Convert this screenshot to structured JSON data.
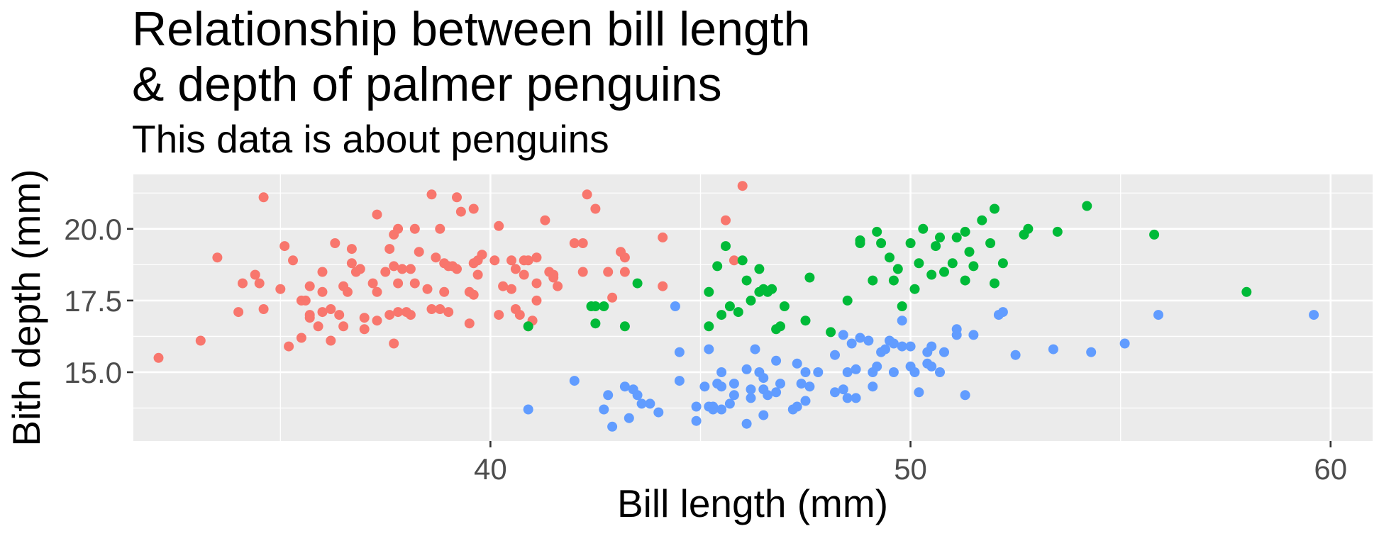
{
  "chart_data": {
    "type": "scatter",
    "title": "Relationship between bill length\n& depth of palmer penguins",
    "subtitle": "This data is about penguins",
    "xlabel": "Bill length (mm)",
    "ylabel": "Bith depth (mm)",
    "xlim": [
      31.5,
      61
    ],
    "ylim": [
      12.6,
      21.9
    ],
    "xticks": [
      40,
      50,
      60
    ],
    "xtick_labels": [
      "40",
      "50",
      "60"
    ],
    "yticks": [
      15,
      17.5,
      20
    ],
    "ytick_labels": [
      "15.0",
      "17.5",
      "20.0"
    ],
    "grid": true,
    "legend": "none",
    "series": [
      {
        "color": "#F8766D",
        "points": [
          [
            32.1,
            15.5
          ],
          [
            33.1,
            16.1
          ],
          [
            33.5,
            19.0
          ],
          [
            34.0,
            17.1
          ],
          [
            34.1,
            18.1
          ],
          [
            34.4,
            18.4
          ],
          [
            34.5,
            18.1
          ],
          [
            34.6,
            21.1
          ],
          [
            34.6,
            17.2
          ],
          [
            35.0,
            17.9
          ],
          [
            35.1,
            19.4
          ],
          [
            35.2,
            15.9
          ],
          [
            35.3,
            18.9
          ],
          [
            35.5,
            16.2
          ],
          [
            35.5,
            17.5
          ],
          [
            35.6,
            17.5
          ],
          [
            35.7,
            16.9
          ],
          [
            35.7,
            17.0
          ],
          [
            35.7,
            18.0
          ],
          [
            35.9,
            16.6
          ],
          [
            36.0,
            17.1
          ],
          [
            36.0,
            17.8
          ],
          [
            36.0,
            18.5
          ],
          [
            36.2,
            16.1
          ],
          [
            36.2,
            17.2
          ],
          [
            36.3,
            19.5
          ],
          [
            36.4,
            17.0
          ],
          [
            36.5,
            16.6
          ],
          [
            36.5,
            18.0
          ],
          [
            36.6,
            17.8
          ],
          [
            36.7,
            18.8
          ],
          [
            36.7,
            19.3
          ],
          [
            36.8,
            18.5
          ],
          [
            36.9,
            18.6
          ],
          [
            37.0,
            16.5
          ],
          [
            37.0,
            16.9
          ],
          [
            37.2,
            18.1
          ],
          [
            37.3,
            17.8
          ],
          [
            37.3,
            16.8
          ],
          [
            37.3,
            20.5
          ],
          [
            37.5,
            18.5
          ],
          [
            37.6,
            17.0
          ],
          [
            37.6,
            19.3
          ],
          [
            37.7,
            16.0
          ],
          [
            37.7,
            18.7
          ],
          [
            37.7,
            19.8
          ],
          [
            37.8,
            17.1
          ],
          [
            37.8,
            18.1
          ],
          [
            37.8,
            20.0
          ],
          [
            37.9,
            18.6
          ],
          [
            38.0,
            17.1
          ],
          [
            38.1,
            17.0
          ],
          [
            38.1,
            18.6
          ],
          [
            38.2,
            18.1
          ],
          [
            38.2,
            20.0
          ],
          [
            38.3,
            19.2
          ],
          [
            38.5,
            17.9
          ],
          [
            38.6,
            17.2
          ],
          [
            38.6,
            21.2
          ],
          [
            38.7,
            19.0
          ],
          [
            38.8,
            17.2
          ],
          [
            38.8,
            20.0
          ],
          [
            38.9,
            17.8
          ],
          [
            38.9,
            18.8
          ],
          [
            39.0,
            17.1
          ],
          [
            39.0,
            18.7
          ],
          [
            39.1,
            18.7
          ],
          [
            39.2,
            21.1
          ],
          [
            39.2,
            18.6
          ],
          [
            39.3,
            20.6
          ],
          [
            39.5,
            16.7
          ],
          [
            39.5,
            17.8
          ],
          [
            39.6,
            17.7
          ],
          [
            39.6,
            18.8
          ],
          [
            39.6,
            20.7
          ],
          [
            39.7,
            18.4
          ],
          [
            39.7,
            18.9
          ],
          [
            39.8,
            19.1
          ],
          [
            40.1,
            18.9
          ],
          [
            40.2,
            17.0
          ],
          [
            40.2,
            20.1
          ],
          [
            40.3,
            18.0
          ],
          [
            40.5,
            17.9
          ],
          [
            40.5,
            18.9
          ],
          [
            40.6,
            17.2
          ],
          [
            40.6,
            18.6
          ],
          [
            40.7,
            17.0
          ],
          [
            40.8,
            18.4
          ],
          [
            40.8,
            18.9
          ],
          [
            40.9,
            16.6
          ],
          [
            40.9,
            18.9
          ],
          [
            41.0,
            16.8
          ],
          [
            41.1,
            17.5
          ],
          [
            41.1,
            18.1
          ],
          [
            41.1,
            19.0
          ],
          [
            41.3,
            20.3
          ],
          [
            41.4,
            18.5
          ],
          [
            41.5,
            18.3
          ],
          [
            41.5,
            18.4
          ],
          [
            41.6,
            18.0
          ],
          [
            42.0,
            19.5
          ],
          [
            42.2,
            18.5
          ],
          [
            42.2,
            19.5
          ],
          [
            42.3,
            21.2
          ],
          [
            42.5,
            20.7
          ],
          [
            42.8,
            18.5
          ],
          [
            42.9,
            17.6
          ],
          [
            43.1,
            19.2
          ],
          [
            43.2,
            19.0
          ],
          [
            43.2,
            18.5
          ],
          [
            44.1,
            18.0
          ],
          [
            44.1,
            19.7
          ],
          [
            45.6,
            20.3
          ],
          [
            45.8,
            18.9
          ],
          [
            46.0,
            21.5
          ]
        ]
      },
      {
        "color": "#00BA38",
        "points": [
          [
            40.9,
            16.6
          ],
          [
            42.4,
            17.3
          ],
          [
            42.5,
            17.3
          ],
          [
            42.5,
            16.7
          ],
          [
            42.7,
            17.3
          ],
          [
            43.2,
            16.6
          ],
          [
            43.5,
            18.1
          ],
          [
            45.2,
            17.8
          ],
          [
            45.2,
            16.6
          ],
          [
            45.4,
            18.7
          ],
          [
            45.5,
            17.0
          ],
          [
            45.6,
            19.4
          ],
          [
            45.7,
            17.3
          ],
          [
            45.9,
            17.1
          ],
          [
            46.0,
            18.9
          ],
          [
            46.1,
            18.2
          ],
          [
            46.2,
            17.5
          ],
          [
            46.4,
            17.8
          ],
          [
            46.4,
            18.6
          ],
          [
            46.5,
            17.9
          ],
          [
            46.6,
            17.8
          ],
          [
            46.7,
            17.9
          ],
          [
            46.8,
            16.5
          ],
          [
            46.9,
            16.6
          ],
          [
            47.0,
            17.3
          ],
          [
            47.5,
            16.8
          ],
          [
            47.6,
            18.3
          ],
          [
            48.1,
            16.4
          ],
          [
            48.5,
            17.5
          ],
          [
            48.8,
            19.6
          ],
          [
            48.8,
            19.5
          ],
          [
            49.1,
            18.2
          ],
          [
            49.2,
            19.9
          ],
          [
            49.3,
            19.5
          ],
          [
            49.5,
            19.0
          ],
          [
            49.6,
            18.2
          ],
          [
            49.7,
            18.6
          ],
          [
            49.8,
            17.3
          ],
          [
            50.0,
            19.5
          ],
          [
            50.1,
            17.9
          ],
          [
            50.2,
            18.8
          ],
          [
            50.3,
            20.0
          ],
          [
            50.5,
            18.4
          ],
          [
            50.6,
            19.4
          ],
          [
            50.7,
            19.7
          ],
          [
            50.8,
            18.5
          ],
          [
            51.0,
            18.8
          ],
          [
            51.1,
            19.7
          ],
          [
            51.3,
            18.2
          ],
          [
            51.3,
            19.9
          ],
          [
            51.4,
            19.2
          ],
          [
            51.5,
            18.7
          ],
          [
            51.7,
            20.3
          ],
          [
            51.9,
            19.5
          ],
          [
            52.0,
            18.1
          ],
          [
            52.0,
            20.7
          ],
          [
            52.2,
            18.8
          ],
          [
            52.7,
            19.8
          ],
          [
            52.8,
            20.0
          ],
          [
            53.5,
            19.9
          ],
          [
            54.2,
            20.8
          ],
          [
            55.8,
            19.8
          ],
          [
            58.0,
            17.8
          ]
        ]
      },
      {
        "color": "#619CFF",
        "points": [
          [
            40.9,
            13.7
          ],
          [
            42.0,
            14.7
          ],
          [
            42.7,
            13.7
          ],
          [
            42.8,
            14.2
          ],
          [
            42.9,
            13.1
          ],
          [
            43.2,
            14.5
          ],
          [
            43.3,
            13.4
          ],
          [
            43.4,
            14.4
          ],
          [
            43.5,
            14.2
          ],
          [
            43.6,
            13.9
          ],
          [
            43.8,
            13.9
          ],
          [
            44.0,
            13.6
          ],
          [
            44.4,
            17.3
          ],
          [
            44.5,
            14.7
          ],
          [
            44.5,
            15.7
          ],
          [
            44.9,
            13.3
          ],
          [
            44.9,
            13.8
          ],
          [
            45.1,
            14.5
          ],
          [
            45.2,
            13.8
          ],
          [
            45.2,
            15.8
          ],
          [
            45.3,
            13.7
          ],
          [
            45.3,
            13.8
          ],
          [
            45.4,
            14.6
          ],
          [
            45.5,
            13.7
          ],
          [
            45.5,
            14.5
          ],
          [
            45.5,
            15.0
          ],
          [
            45.7,
            13.9
          ],
          [
            45.8,
            14.2
          ],
          [
            45.8,
            14.6
          ],
          [
            46.1,
            13.2
          ],
          [
            46.1,
            15.1
          ],
          [
            46.2,
            14.1
          ],
          [
            46.2,
            14.4
          ],
          [
            46.3,
            15.8
          ],
          [
            46.4,
            15.0
          ],
          [
            46.5,
            13.5
          ],
          [
            46.5,
            14.4
          ],
          [
            46.5,
            14.8
          ],
          [
            46.6,
            14.2
          ],
          [
            46.8,
            14.3
          ],
          [
            46.8,
            15.4
          ],
          [
            46.9,
            14.6
          ],
          [
            47.2,
            13.7
          ],
          [
            47.3,
            13.8
          ],
          [
            47.3,
            15.3
          ],
          [
            47.4,
            14.6
          ],
          [
            47.5,
            14.0
          ],
          [
            47.5,
            15.0
          ],
          [
            47.6,
            14.5
          ],
          [
            47.8,
            15.0
          ],
          [
            48.2,
            14.3
          ],
          [
            48.2,
            15.6
          ],
          [
            48.4,
            14.4
          ],
          [
            48.4,
            16.3
          ],
          [
            48.5,
            14.1
          ],
          [
            48.5,
            15.0
          ],
          [
            48.6,
            16.0
          ],
          [
            48.7,
            14.1
          ],
          [
            48.7,
            15.1
          ],
          [
            48.8,
            16.2
          ],
          [
            49.0,
            16.1
          ],
          [
            49.1,
            14.5
          ],
          [
            49.1,
            15.0
          ],
          [
            49.2,
            15.2
          ],
          [
            49.3,
            15.7
          ],
          [
            49.4,
            15.8
          ],
          [
            49.5,
            16.1
          ],
          [
            49.6,
            15.0
          ],
          [
            49.6,
            16.0
          ],
          [
            49.8,
            15.9
          ],
          [
            49.8,
            16.8
          ],
          [
            50.0,
            15.2
          ],
          [
            50.0,
            15.9
          ],
          [
            50.1,
            15.0
          ],
          [
            50.2,
            14.3
          ],
          [
            50.4,
            15.3
          ],
          [
            50.4,
            15.7
          ],
          [
            50.5,
            15.2
          ],
          [
            50.5,
            15.9
          ],
          [
            50.7,
            15.0
          ],
          [
            50.8,
            15.7
          ],
          [
            51.1,
            16.3
          ],
          [
            51.1,
            16.5
          ],
          [
            51.3,
            14.2
          ],
          [
            51.5,
            16.3
          ],
          [
            52.1,
            17.0
          ],
          [
            52.2,
            17.1
          ],
          [
            52.5,
            15.6
          ],
          [
            53.4,
            15.8
          ],
          [
            54.3,
            15.7
          ],
          [
            55.1,
            16.0
          ],
          [
            55.9,
            17.0
          ],
          [
            59.6,
            17.0
          ]
        ]
      }
    ]
  }
}
